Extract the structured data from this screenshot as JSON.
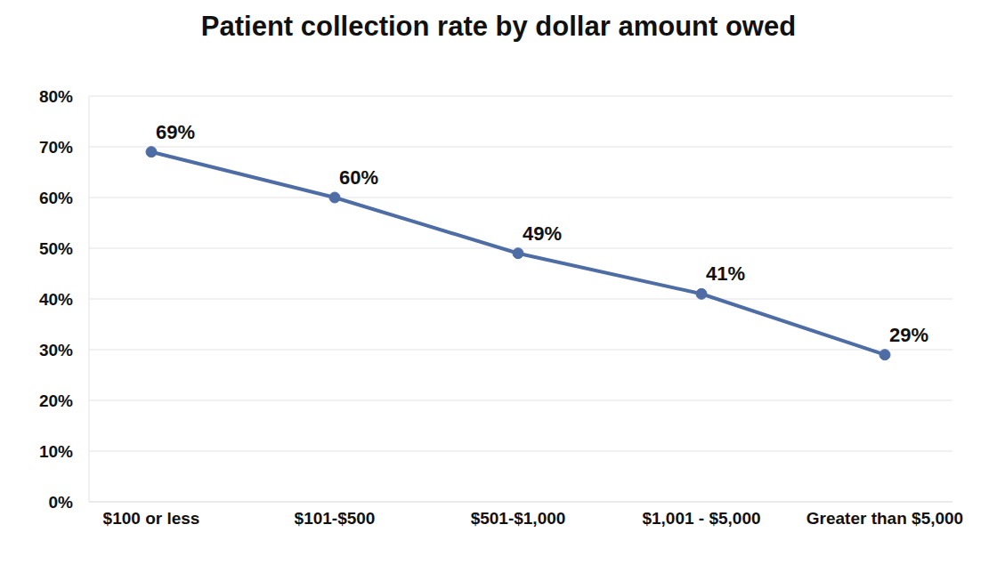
{
  "chart_data": {
    "type": "line",
    "title": "Patient collection rate by dollar amount owed",
    "categories": [
      "$100 or less",
      "$101-$500",
      "$501-$1,000",
      "$1,001 - $5,000",
      "Greater than $5,000"
    ],
    "values": [
      69,
      60,
      49,
      41,
      29
    ],
    "value_labels": [
      "69%",
      "60%",
      "49%",
      "41%",
      "29%"
    ],
    "color": "#4f6da5",
    "marker": "circle",
    "ylim": [
      0,
      80
    ],
    "yticks": [
      {
        "value": 0,
        "label": "0%"
      },
      {
        "value": 10,
        "label": "10%"
      },
      {
        "value": 20,
        "label": "20%"
      },
      {
        "value": 30,
        "label": "30%"
      },
      {
        "value": 40,
        "label": "40%"
      },
      {
        "value": 50,
        "label": "50%"
      },
      {
        "value": 60,
        "label": "60%"
      },
      {
        "value": 70,
        "label": "70%"
      },
      {
        "value": 80,
        "label": "80%"
      }
    ],
    "grid": true,
    "data_labels": true
  }
}
